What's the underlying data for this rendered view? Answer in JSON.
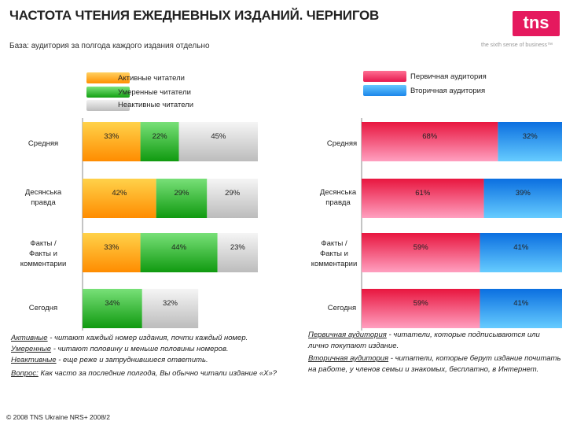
{
  "header": {
    "title": "ЧАСТОТА ЧТЕНИЯ ЕЖЕДНЕВНЫХ ИЗДАНИЙ. ЧЕРНИГОВ",
    "base_note": "База: аудитория за полгода каждого издания отдельно"
  },
  "logo": {
    "text": "tns",
    "tagline": "the sixth sense of business™",
    "color": "#e5195e"
  },
  "legend_left": [
    {
      "label": "Активные читатели",
      "color": "#ffa000"
    },
    {
      "label": "Умеренные читатели",
      "color": "#22b522"
    },
    {
      "label": "Неактивные читатели",
      "color": "#c8c8c8"
    }
  ],
  "legend_right": [
    {
      "label": "Первичная аудитория",
      "color": "#f0205a"
    },
    {
      "label": "Вторичная аудитория",
      "color": "#2090f0"
    }
  ],
  "chart_data": [
    {
      "type": "bar",
      "stacked": true,
      "orientation": "horizontal",
      "categories": [
        "Средняя",
        "Десянська правда",
        "Факты / Факты и комментарии",
        "Сегодня"
      ],
      "series": [
        {
          "name": "Активные читатели",
          "values": [
            33,
            42,
            33,
            0
          ]
        },
        {
          "name": "Умеренные читатели",
          "values": [
            22,
            29,
            44,
            34
          ]
        },
        {
          "name": "Неактивные читатели",
          "values": [
            45,
            29,
            23,
            32
          ]
        }
      ],
      "labels": [
        [
          "33%",
          "22%",
          "45%"
        ],
        [
          "42%",
          "29%",
          "29%"
        ],
        [
          "33%",
          "44%",
          "23%"
        ],
        [
          "",
          "34%",
          "32%"
        ]
      ],
      "xlim": [
        0,
        100
      ]
    },
    {
      "type": "bar",
      "stacked": true,
      "orientation": "horizontal",
      "categories": [
        "Средняя",
        "Десянська правда",
        "Факты / Факты и комментарии",
        "Сегодня"
      ],
      "series": [
        {
          "name": "Первичная аудитория",
          "values": [
            68,
            61,
            59,
            59
          ]
        },
        {
          "name": "Вторичная аудитория",
          "values": [
            32,
            39,
            41,
            41
          ]
        }
      ],
      "labels": [
        [
          "68%",
          "32%"
        ],
        [
          "61%",
          "39%"
        ],
        [
          "59%",
          "41%"
        ],
        [
          "59%",
          "41%"
        ]
      ],
      "xlim": [
        0,
        100
      ]
    }
  ],
  "left_categories": [
    {
      "line1": "Средняя",
      "line2": "",
      "line3": ""
    },
    {
      "line1": "Десянська",
      "line2": "правда",
      "line3": ""
    },
    {
      "line1": "Факты /",
      "line2": "Факты и",
      "line3": "комментарии"
    },
    {
      "line1": "Сегодня",
      "line2": "",
      "line3": ""
    }
  ],
  "notes_left": [
    {
      "term": "Активные",
      "text": " - читают каждый номер издания, почти каждый номер."
    },
    {
      "term": "Умеренные",
      "text": " - читают половину и меньше половины номеров."
    },
    {
      "term": "Неактивные",
      "text": " - еще реже и затруднившиеся ответить."
    },
    {
      "term": "Вопрос:",
      "text": " Как часто за последние полгода, Вы обычно читали издание «Х»?"
    }
  ],
  "notes_right": [
    {
      "term": "Первичная аудитория",
      "text": " - читатели, которые подписываются или лично покупают издание."
    },
    {
      "term": "Вторичная аудитория",
      "text": " - читатели, которые берут издание почитать на работе, у членов семьи и знакомых, бесплатно, в Интернет."
    }
  ],
  "footer": "© 2008 TNS Ukraine NRS+ 2008/2"
}
